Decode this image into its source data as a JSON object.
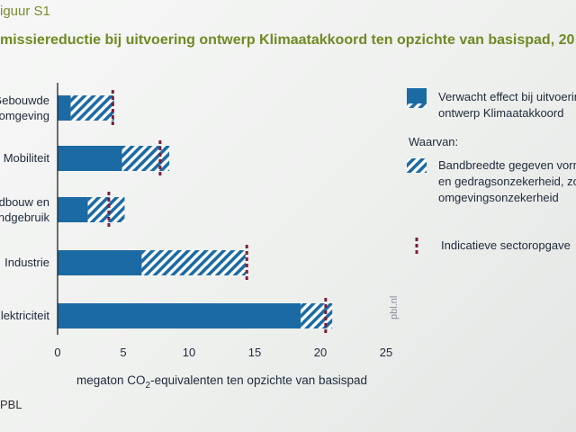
{
  "figure_label": "iguur S1",
  "title": "missiereductie bij uitvoering ontwerp Klimaatakkoord ten opzichte van basispad, 20",
  "source": "PBL",
  "watermark": "pbl.nl",
  "colors": {
    "bar": "#1c6aa4",
    "marker": "#7a1f3d",
    "axis": "#222222"
  },
  "legend": {
    "expected_line1": "Verwacht effect bij uitvoerin",
    "expected_line2": "ontwerp Klimaatakkoord",
    "of_which": "Waarvan:",
    "range_line1": "Bandbreedte gegeven vorm",
    "range_line2": "en gedragsonzekerheid, zo",
    "range_line3": "omgevingsonzekerheid",
    "indicative": "Indicatieve sectoropgave"
  },
  "chart_data": {
    "type": "bar",
    "orientation": "horizontal",
    "categories": [
      [
        "Gebouwde",
        "omgeving"
      ],
      [
        "Mobiliteit"
      ],
      [
        "andbouw en",
        "andgebruik"
      ],
      [
        "Industrie"
      ],
      [
        "lektriciteit"
      ]
    ],
    "series": [
      {
        "name": "Verwacht effect bij uitvoering ontwerp Klimaatakkoord",
        "values": [
          1.0,
          4.9,
          2.3,
          6.4,
          18.5
        ]
      },
      {
        "name": "Bandbreedte gegeven vorm- en gedragsonzekerheid, zo omgevingsonzekerheid",
        "range_end": [
          4.3,
          8.5,
          5.1,
          14.3,
          20.9
        ]
      },
      {
        "name": "Indicatieve sectoropgave",
        "values": [
          4.2,
          7.8,
          3.9,
          14.4,
          20.4
        ]
      }
    ],
    "x_ticks": [
      0,
      5,
      10,
      15,
      20,
      25
    ],
    "xlim": [
      0,
      25
    ],
    "xlabel_pre": "megaton CO",
    "xlabel_sub": "2",
    "xlabel_post": "-equivalenten ten opzichte van basispad",
    "legend_position": "right",
    "grid": false
  }
}
